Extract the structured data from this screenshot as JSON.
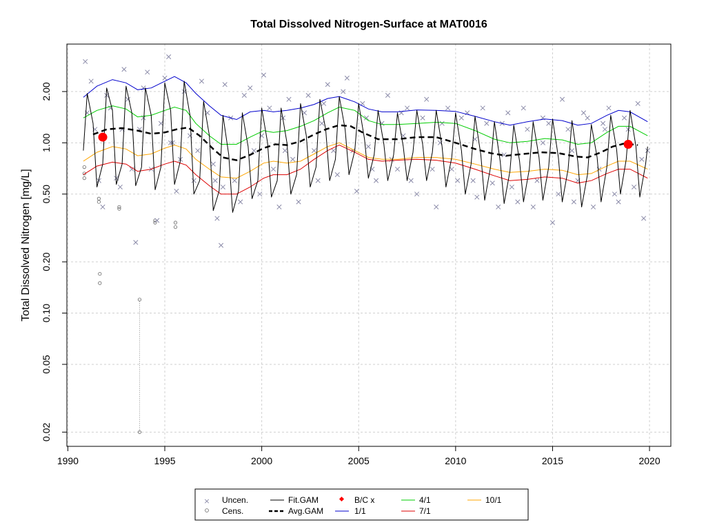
{
  "chart_data": {
    "type": "scatter",
    "title": "Total Dissolved Nitrogen-Surface at MAT0016",
    "xlabel": "",
    "ylabel": "Total Dissolved Nitrogen [mg/L]",
    "y_scale": "log",
    "xlim": [
      1989.95,
      2021.1
    ],
    "ylim": [
      0.0165,
      3.8
    ],
    "x_ticks": [
      1990,
      1995,
      2000,
      2005,
      2010,
      2015,
      2020
    ],
    "x_tick_labels": [
      "1990",
      "1995",
      "2000",
      "2005",
      "2010",
      "2015",
      "2020"
    ],
    "y_ticks": [
      0.02,
      0.05,
      0.1,
      0.2,
      0.5,
      1.0,
      2.0
    ],
    "y_tick_labels": [
      "0.02",
      "0.05",
      "0.10",
      "0.20",
      "0.50",
      "1.00",
      "2.00"
    ],
    "grid": true,
    "legend_position": "bottom",
    "series": [
      {
        "name": "1/1",
        "color": "#0000cc",
        "style": "solid",
        "x": [
          1990.8,
          1991.5,
          1992.3,
          1993.0,
          1993.6,
          1994.3,
          1995.0,
          1995.5,
          1996.1,
          1996.6,
          1997.3,
          1997.9,
          1998.7,
          1999.4,
          2000.1,
          2000.6,
          2001.3,
          2002.0,
          2002.7,
          2003.4,
          2004.0,
          2004.8,
          2005.5,
          2006.2,
          2007.0,
          2008.0,
          2009.0,
          2010.0,
          2011.0,
          2012.0,
          2012.8,
          2013.7,
          2014.6,
          2015.5,
          2016.3,
          2017.0,
          2017.8,
          2018.4,
          2019.0,
          2019.9
        ],
        "values": [
          1.85,
          2.15,
          2.35,
          2.25,
          2.05,
          2.1,
          2.3,
          2.45,
          2.25,
          1.95,
          1.65,
          1.45,
          1.37,
          1.52,
          1.55,
          1.52,
          1.55,
          1.6,
          1.68,
          1.82,
          1.87,
          1.74,
          1.58,
          1.52,
          1.52,
          1.56,
          1.55,
          1.53,
          1.43,
          1.33,
          1.27,
          1.33,
          1.38,
          1.35,
          1.27,
          1.3,
          1.45,
          1.55,
          1.52,
          1.33
        ]
      },
      {
        "name": "4/1",
        "color": "#00cc00",
        "style": "solid",
        "x": [
          1990.8,
          1991.5,
          1992.3,
          1993.0,
          1993.6,
          1994.3,
          1995.0,
          1995.5,
          1996.1,
          1996.6,
          1997.3,
          1997.9,
          1998.7,
          1999.4,
          2000.1,
          2000.6,
          2001.3,
          2002.0,
          2002.7,
          2003.4,
          2004.0,
          2004.8,
          2005.5,
          2006.2,
          2007.0,
          2008.0,
          2009.0,
          2010.0,
          2011.0,
          2012.0,
          2012.8,
          2013.7,
          2014.6,
          2015.5,
          2016.3,
          2017.0,
          2017.8,
          2018.4,
          2019.0,
          2019.9
        ],
        "values": [
          1.4,
          1.55,
          1.65,
          1.58,
          1.42,
          1.45,
          1.55,
          1.62,
          1.55,
          1.3,
          1.1,
          0.98,
          0.98,
          1.08,
          1.18,
          1.15,
          1.18,
          1.25,
          1.35,
          1.5,
          1.62,
          1.55,
          1.35,
          1.28,
          1.28,
          1.3,
          1.32,
          1.3,
          1.18,
          1.05,
          1.0,
          1.02,
          1.06,
          1.04,
          0.98,
          1.0,
          1.15,
          1.25,
          1.25,
          1.1
        ]
      },
      {
        "name": "10/1",
        "color": "#ffa500",
        "style": "solid",
        "x": [
          1990.8,
          1991.5,
          1992.3,
          1993.0,
          1993.6,
          1994.3,
          1995.0,
          1995.5,
          1996.1,
          1996.6,
          1997.3,
          1997.9,
          1998.7,
          1999.4,
          2000.1,
          2000.6,
          2001.3,
          2002.0,
          2002.7,
          2003.4,
          2004.0,
          2004.8,
          2005.5,
          2006.2,
          2007.0,
          2008.0,
          2009.0,
          2010.0,
          2011.0,
          2012.0,
          2012.8,
          2013.7,
          2014.6,
          2015.5,
          2016.3,
          2017.0,
          2017.8,
          2018.4,
          2019.0,
          2019.9
        ],
        "values": [
          0.78,
          0.88,
          0.95,
          0.92,
          0.84,
          0.86,
          0.93,
          0.97,
          0.92,
          0.8,
          0.7,
          0.63,
          0.62,
          0.68,
          0.76,
          0.78,
          0.76,
          0.78,
          0.86,
          0.95,
          1.0,
          0.9,
          0.82,
          0.8,
          0.8,
          0.82,
          0.82,
          0.8,
          0.75,
          0.7,
          0.67,
          0.68,
          0.7,
          0.69,
          0.65,
          0.66,
          0.73,
          0.78,
          0.78,
          0.7
        ]
      },
      {
        "name": "7/1",
        "color": "#dd0000",
        "style": "solid",
        "x": [
          1990.8,
          1991.5,
          1992.3,
          1993.0,
          1993.6,
          1994.3,
          1995.0,
          1995.5,
          1996.1,
          1996.6,
          1997.3,
          1997.9,
          1998.7,
          1999.4,
          2000.1,
          2000.6,
          2001.3,
          2002.0,
          2002.7,
          2003.4,
          2004.0,
          2004.8,
          2005.5,
          2006.2,
          2007.0,
          2008.0,
          2009.0,
          2010.0,
          2011.0,
          2012.0,
          2012.8,
          2013.7,
          2014.6,
          2015.5,
          2016.3,
          2017.0,
          2017.8,
          2018.4,
          2019.0,
          2019.9
        ],
        "values": [
          0.65,
          0.73,
          0.77,
          0.75,
          0.68,
          0.7,
          0.75,
          0.78,
          0.74,
          0.65,
          0.56,
          0.5,
          0.5,
          0.55,
          0.62,
          0.65,
          0.65,
          0.7,
          0.8,
          0.9,
          0.97,
          0.88,
          0.8,
          0.78,
          0.79,
          0.8,
          0.79,
          0.76,
          0.7,
          0.64,
          0.6,
          0.61,
          0.63,
          0.62,
          0.58,
          0.6,
          0.66,
          0.7,
          0.7,
          0.62
        ]
      },
      {
        "name": "Avg.GAM",
        "color": "#000000",
        "style": "dashed",
        "x": [
          1991.3,
          1992.0,
          1992.8,
          1993.6,
          1994.3,
          1995.0,
          1995.6,
          1996.2,
          1996.8,
          1997.5,
          1998.0,
          1998.7,
          1999.4,
          2000.1,
          2000.7,
          2001.3,
          2002.0,
          2002.7,
          2003.3,
          2004.0,
          2004.6,
          2005.2,
          2006.0,
          2007.0,
          2008.0,
          2009.0,
          2010.0,
          2011.0,
          2011.8,
          2012.6,
          2013.5,
          2014.4,
          2015.3,
          2016.2,
          2016.8,
          2017.5,
          2018.1,
          2018.7,
          2019.4
        ],
        "values": [
          1.12,
          1.2,
          1.22,
          1.18,
          1.13,
          1.15,
          1.2,
          1.23,
          1.1,
          0.92,
          0.82,
          0.79,
          0.85,
          0.93,
          0.98,
          0.97,
          1.02,
          1.12,
          1.2,
          1.27,
          1.25,
          1.15,
          1.05,
          1.05,
          1.08,
          1.08,
          1.0,
          0.92,
          0.87,
          0.84,
          0.86,
          0.88,
          0.87,
          0.83,
          0.82,
          0.88,
          0.95,
          0.99,
          0.97
        ]
      }
    ],
    "fit_gam": {
      "name": "Fit.GAM",
      "color": "#000000",
      "x": [
        1990.8,
        1991.0,
        1991.3,
        1991.5,
        1991.8,
        1992.0,
        1992.3,
        1992.5,
        1992.8,
        1993.0,
        1993.3,
        1993.5,
        1993.8,
        1994.0,
        1994.3,
        1994.5,
        1994.8,
        1995.0,
        1995.3,
        1995.5,
        1995.8,
        1996.0,
        1996.3,
        1996.5,
        1996.8,
        1997.0,
        1997.3,
        1997.5,
        1997.8,
        1998.0,
        1998.3,
        1998.5,
        1998.8,
        1999.0,
        1999.3,
        1999.5,
        1999.8,
        2000.0,
        2000.3,
        2000.5,
        2000.8,
        2001.0,
        2001.3,
        2001.5,
        2001.8,
        2002.0,
        2002.3,
        2002.5,
        2002.8,
        2003.0,
        2003.3,
        2003.5,
        2003.8,
        2004.0,
        2004.3,
        2004.5,
        2004.8,
        2005.0,
        2005.3,
        2005.5,
        2005.8,
        2006.0,
        2006.3,
        2006.5,
        2006.8,
        2007.0,
        2007.3,
        2007.5,
        2007.8,
        2008.0,
        2008.3,
        2008.5,
        2008.8,
        2009.0,
        2009.3,
        2009.5,
        2009.8,
        2010.0,
        2010.3,
        2010.5,
        2010.8,
        2011.0,
        2011.3,
        2011.5,
        2011.8,
        2012.0,
        2012.3,
        2012.5,
        2012.8,
        2013.0,
        2013.3,
        2013.5,
        2013.8,
        2014.0,
        2014.3,
        2014.5,
        2014.8,
        2015.0,
        2015.3,
        2015.5,
        2015.8,
        2016.0,
        2016.3,
        2016.5,
        2016.8,
        2017.0,
        2017.3,
        2017.5,
        2017.8,
        2018.0,
        2018.3,
        2018.5,
        2018.8,
        2019.0,
        2019.3,
        2019.5,
        2019.8,
        2019.9
      ],
      "values": [
        0.9,
        1.95,
        1.3,
        0.55,
        0.75,
        2.1,
        1.55,
        0.57,
        0.75,
        2.15,
        1.5,
        0.56,
        0.72,
        2.1,
        1.45,
        0.53,
        0.72,
        2.25,
        1.55,
        0.57,
        0.78,
        2.3,
        1.45,
        0.5,
        0.6,
        1.75,
        1.1,
        0.4,
        0.52,
        1.45,
        0.85,
        0.39,
        0.52,
        1.5,
        0.95,
        0.47,
        0.6,
        1.6,
        1.0,
        0.48,
        0.6,
        1.6,
        1.0,
        0.5,
        0.65,
        1.7,
        1.1,
        0.55,
        0.72,
        1.8,
        1.2,
        0.6,
        0.8,
        1.87,
        1.2,
        0.65,
        0.9,
        1.7,
        1.05,
        0.62,
        0.85,
        1.55,
        0.98,
        0.6,
        0.85,
        1.5,
        0.95,
        0.6,
        0.88,
        1.55,
        0.98,
        0.6,
        0.88,
        1.55,
        0.95,
        0.55,
        0.82,
        1.5,
        0.9,
        0.5,
        0.75,
        1.43,
        0.85,
        0.46,
        0.72,
        1.33,
        0.78,
        0.44,
        0.68,
        1.27,
        0.78,
        0.45,
        0.7,
        1.33,
        0.82,
        0.46,
        0.72,
        1.38,
        0.82,
        0.45,
        0.7,
        1.35,
        0.78,
        0.42,
        0.65,
        1.28,
        0.82,
        0.45,
        0.72,
        1.45,
        0.92,
        0.5,
        0.8,
        1.55,
        0.95,
        0.48,
        0.75,
        0.95
      ]
    },
    "bc_points": {
      "name": "B/C x",
      "color": "#ff0000",
      "x": [
        1991.8,
        2018.9
      ],
      "values": [
        1.08,
        0.98
      ]
    },
    "uncensored": {
      "name": "Uncen.",
      "color": "#8a8aa8",
      "x": [
        1990.9,
        1991.2,
        1991.4,
        1991.6,
        1991.8,
        1992.0,
        1992.2,
        1992.5,
        1992.7,
        1992.9,
        1993.1,
        1993.3,
        1993.5,
        1993.7,
        1993.9,
        1994.1,
        1994.3,
        1994.6,
        1994.8,
        1995.0,
        1995.2,
        1995.4,
        1995.6,
        1995.8,
        1996.0,
        1996.3,
        1996.5,
        1996.7,
        1996.9,
        1997.2,
        1997.5,
        1997.7,
        1997.9,
        1998.1,
        1998.4,
        1998.6,
        1998.9,
        1999.1,
        1999.4,
        1999.6,
        1999.9,
        2000.1,
        2000.4,
        2000.6,
        2000.9,
        2001.1,
        2001.4,
        2001.6,
        2001.9,
        2002.2,
        2002.4,
        2002.7,
        2002.9,
        2003.2,
        2003.4,
        2003.7,
        2003.9,
        2004.2,
        2004.4,
        2004.7,
        2004.9,
        2005.2,
        2005.4,
        2005.7,
        2005.9,
        2006.2,
        2006.5,
        2006.7,
        2007.0,
        2007.2,
        2007.5,
        2007.7,
        2008.0,
        2008.3,
        2008.5,
        2008.8,
        2009.0,
        2009.3,
        2009.6,
        2009.8,
        2010.1,
        2010.3,
        2010.6,
        2010.9,
        2011.1,
        2011.4,
        2011.6,
        2011.9,
        2012.2,
        2012.4,
        2012.7,
        2012.9,
        2013.2,
        2013.5,
        2013.7,
        2014.0,
        2014.2,
        2014.5,
        2014.8,
        2015.0,
        2015.3,
        2015.5,
        2015.8,
        2016.1,
        2016.3,
        2016.6,
        2016.8,
        2017.1,
        2017.4,
        2017.6,
        2017.9,
        2018.2,
        2018.4,
        2018.7,
        2018.9,
        2019.2,
        2019.4,
        2019.7,
        2019.9,
        1991.0,
        1992.8,
        1993.9,
        1995.3,
        1997.6,
        1998.0,
        2000.0,
        2001.2,
        2003.1,
        2005.5,
        2007.3,
        2009.2,
        2011.0,
        2012.5,
        2014.5,
        2016.0,
        2017.7,
        2019.6
      ],
      "values": [
        3.0,
        2.3,
        1.2,
        0.6,
        0.42,
        1.9,
        1.6,
        0.62,
        0.55,
        2.7,
        1.8,
        0.7,
        0.26,
        1.2,
        2.1,
        2.6,
        0.7,
        0.35,
        1.3,
        2.4,
        3.2,
        1.0,
        0.52,
        0.8,
        2.0,
        1.1,
        0.6,
        0.9,
        2.3,
        1.5,
        0.75,
        0.36,
        0.25,
        2.2,
        1.4,
        0.6,
        0.45,
        1.9,
        2.1,
        0.9,
        0.5,
        2.5,
        1.6,
        0.7,
        0.42,
        1.4,
        1.8,
        0.8,
        0.45,
        1.5,
        1.9,
        0.9,
        0.6,
        1.7,
        2.2,
        0.9,
        0.65,
        2.0,
        2.4,
        0.9,
        0.52,
        1.7,
        1.4,
        0.7,
        0.6,
        1.3,
        1.9,
        0.8,
        0.7,
        1.5,
        1.6,
        0.6,
        0.5,
        1.4,
        1.8,
        0.7,
        0.42,
        1.3,
        1.6,
        0.7,
        0.6,
        1.4,
        1.5,
        0.6,
        0.48,
        1.6,
        1.3,
        0.58,
        0.42,
        1.3,
        1.5,
        0.55,
        0.45,
        1.6,
        1.2,
        0.42,
        0.6,
        1.4,
        1.3,
        0.34,
        0.5,
        1.8,
        1.2,
        0.45,
        0.6,
        1.5,
        1.4,
        0.42,
        0.7,
        1.3,
        1.6,
        0.5,
        0.45,
        1.4,
        1.2,
        0.55,
        1.7,
        0.36,
        0.9,
        1.5,
        1.2,
        1.4,
        1.0,
        0.6,
        0.55,
        1.1,
        0.9,
        1.3,
        0.95,
        1.1,
        1.0,
        1.05,
        0.85,
        1.0,
        0.9,
        1.2,
        0.8
      ]
    },
    "censored": {
      "name": "Cens.",
      "color": "#666666",
      "x": [
        1990.85,
        1990.85,
        1990.85,
        1991.6,
        1991.6,
        1991.65,
        1991.65,
        1992.65,
        1992.65,
        1993.7,
        1993.7,
        1994.5,
        1994.5,
        1995.55,
        1995.55
      ],
      "values": [
        0.72,
        0.66,
        0.62,
        0.47,
        0.45,
        0.17,
        0.15,
        0.42,
        0.41,
        0.12,
        0.02,
        0.35,
        0.34,
        0.34,
        0.32
      ],
      "range_line": {
        "x": 1993.7,
        "from": 0.02,
        "to": 0.12
      }
    }
  },
  "legend": {
    "col1": [
      "Uncen.",
      "Cens."
    ],
    "col2": [
      "Fit.GAM",
      "Avg.GAM"
    ],
    "col3": [
      "B/C x",
      "1/1"
    ],
    "col4": [
      "4/1",
      "7/1"
    ],
    "col5": [
      "10/1"
    ]
  },
  "colors": {
    "grid": "#cfcfcf",
    "axis": "#000000"
  }
}
